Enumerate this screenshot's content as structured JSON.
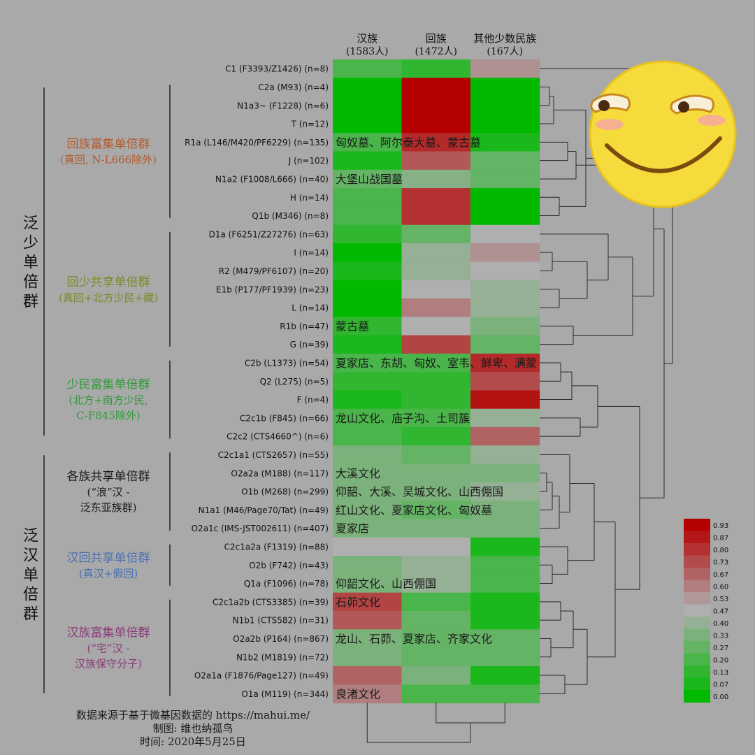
{
  "chart_data": {
    "type": "heatmap",
    "columns": [
      {
        "name": "汉族",
        "count": "(1583人)"
      },
      {
        "name": "回族",
        "count": "(1472人)"
      },
      {
        "name": "其他少数民族",
        "count": "(167人)"
      }
    ],
    "rows": [
      {
        "label": "C1 (F3393/Z1426) (n=8)",
        "values": [
          0.2,
          0.13,
          0.55
        ],
        "note": ""
      },
      {
        "label": "C2a (M93) (n=4)",
        "values": [
          0.0,
          0.95,
          0.0
        ],
        "note": ""
      },
      {
        "label": "N1a3~ (F1228) (n=6)",
        "values": [
          0.0,
          0.95,
          0.0
        ],
        "note": ""
      },
      {
        "label": "T (n=12)",
        "values": [
          0.0,
          0.95,
          0.0
        ],
        "note": ""
      },
      {
        "label": "R1a (L146/M420/PF6229) (n=135)",
        "values": [
          0.2,
          0.82,
          0.07
        ],
        "note": "匈奴墓、阿尔泰大墓、蒙古墓"
      },
      {
        "label": "J (n=102)",
        "values": [
          0.07,
          0.7,
          0.27
        ],
        "note": ""
      },
      {
        "label": "N1a2 (F1008/L666) (n=40)",
        "values": [
          0.27,
          0.36,
          0.27
        ],
        "note": "大堡山战国墓"
      },
      {
        "label": "H (n=14)",
        "values": [
          0.2,
          0.8,
          0.0
        ],
        "note": ""
      },
      {
        "label": "Q1b (M346) (n=8)",
        "values": [
          0.2,
          0.8,
          0.0
        ],
        "note": ""
      },
      {
        "label": "D1a (F6251/Z27276) (n=63)",
        "values": [
          0.13,
          0.27,
          0.47
        ],
        "note": ""
      },
      {
        "label": "I (n=14)",
        "values": [
          0.0,
          0.4,
          0.55
        ],
        "note": ""
      },
      {
        "label": "R2 (M479/PF6107) (n=20)",
        "values": [
          0.07,
          0.4,
          0.47
        ],
        "note": ""
      },
      {
        "label": "E1b (P177/PF1939) (n=23)",
        "values": [
          0.0,
          0.47,
          0.4
        ],
        "note": ""
      },
      {
        "label": "L (n=14)",
        "values": [
          0.0,
          0.6,
          0.4
        ],
        "note": ""
      },
      {
        "label": "R1b (n=47)",
        "values": [
          0.13,
          0.47,
          0.33
        ],
        "note": "蒙古墓"
      },
      {
        "label": "G (n=39)",
        "values": [
          0.07,
          0.75,
          0.27
        ],
        "note": ""
      },
      {
        "label": "C2b (L1373) (n=54)",
        "values": [
          0.2,
          0.2,
          0.82
        ],
        "note": "夏家店、东胡、匈奴、室韦、鲜卑、满蒙"
      },
      {
        "label": "Q2 (L275) (n=5)",
        "values": [
          0.13,
          0.13,
          0.73
        ],
        "note": ""
      },
      {
        "label": "F (n=4)",
        "values": [
          0.07,
          0.13,
          0.88
        ],
        "note": ""
      },
      {
        "label": "C2c1b (F845) (n=66)",
        "values": [
          0.2,
          0.2,
          0.4
        ],
        "note": "龙山文化、庙子沟、土司簇"
      },
      {
        "label": "C2c2 (CTS4660^) (n=6)",
        "values": [
          0.2,
          0.13,
          0.67
        ],
        "note": ""
      },
      {
        "label": "C2c1a1 (CTS2657) (n=55)",
        "values": [
          0.33,
          0.27,
          0.4
        ],
        "note": ""
      },
      {
        "label": "O2a2a (M188) (n=117)",
        "values": [
          0.33,
          0.33,
          0.33
        ],
        "note": "大溪文化"
      },
      {
        "label": "O1b (M268) (n=299)",
        "values": [
          0.33,
          0.33,
          0.4
        ],
        "note": "仰韶、大溪、吴城文化、山西倗国"
      },
      {
        "label": "N1a1 (M46/Page70/Tat) (n=49)",
        "values": [
          0.33,
          0.27,
          0.33
        ],
        "note": "红山文化、夏家店文化、匈奴墓"
      },
      {
        "label": "O2a1c (IMS-JST002611) (n=407)",
        "values": [
          0.33,
          0.33,
          0.33
        ],
        "note": "夏家店"
      },
      {
        "label": "C2c1a2a (F1319) (n=88)",
        "values": [
          0.47,
          0.47,
          0.07
        ],
        "note": ""
      },
      {
        "label": "O2b (F742) (n=43)",
        "values": [
          0.33,
          0.4,
          0.2
        ],
        "note": ""
      },
      {
        "label": "Q1a (F1096) (n=78)",
        "values": [
          0.33,
          0.4,
          0.2
        ],
        "note": "仰韶文化、山西倗国"
      },
      {
        "label": "C2c1a2b (CTS3385) (n=39)",
        "values": [
          0.75,
          0.2,
          0.07
        ],
        "note": "石茆文化"
      },
      {
        "label": "N1b1 (CTS582) (n=31)",
        "values": [
          0.7,
          0.27,
          0.07
        ],
        "note": ""
      },
      {
        "label": "O2a2b (P164) (n=867)",
        "values": [
          0.33,
          0.27,
          0.27
        ],
        "note": "龙山、石茆、夏家店、齐家文化"
      },
      {
        "label": "N1b2 (M1819) (n=72)",
        "values": [
          0.33,
          0.27,
          0.27
        ],
        "note": ""
      },
      {
        "label": "O2a1a (F1876/Page127) (n=49)",
        "values": [
          0.67,
          0.33,
          0.07
        ],
        "note": ""
      },
      {
        "label": "O1a (M119) (n=344)",
        "values": [
          0.6,
          0.2,
          0.2
        ],
        "note": "良渚文化"
      }
    ],
    "row_groups": [
      {
        "start": 1,
        "end": 8,
        "lines": [
          "回族富集单倍群",
          "(真回, N-L666除外)"
        ],
        "color": "#b25a2c"
      },
      {
        "start": 9,
        "end": 15,
        "lines": [
          "回少共享单倍群",
          "(真回+北方少民+藏)"
        ],
        "color": "#7a8a2a"
      },
      {
        "start": 16,
        "end": 20,
        "lines": [
          "少民富集单倍群",
          "(北方+南方少民,",
          "C-F845除外)"
        ],
        "color": "#2f9a3a"
      },
      {
        "start": 21,
        "end": 25,
        "lines": [
          "各族共享单倍群",
          "(“浪”汉 -",
          "泛东亚族群)"
        ],
        "color": "#1a1a1a"
      },
      {
        "start": 26,
        "end": 28,
        "lines": [
          "汉回共享单倍群",
          "(真汉+假回)"
        ],
        "color": "#4a6fb0"
      },
      {
        "start": 29,
        "end": 34,
        "lines": [
          "汉族富集单倍群",
          "(“宅”汉 -",
          "汉族保守分子)"
        ],
        "color": "#8a3a7a"
      }
    ],
    "super_groups": [
      {
        "start": 1,
        "end": 20,
        "label": "泛少单倍群"
      },
      {
        "start": 21,
        "end": 34,
        "label": "泛汉单倍群"
      }
    ],
    "legend": {
      "ticks": [
        "0.93",
        "0.87",
        "0.80",
        "0.73",
        "0.67",
        "0.60",
        "0.53",
        "0.47",
        "0.40",
        "0.33",
        "0.27",
        "0.20",
        "0.13",
        "0.07",
        "0.00"
      ],
      "range": [
        0,
        0.93
      ],
      "placement": "bottom-right"
    }
  },
  "footer": {
    "line1": "数据来源于基于微基因数据的 https://mahui.me/",
    "line2": "制图: 维也纳孤鸟",
    "line3": "时间: 2020年5月25日"
  },
  "emoji": {
    "icon": "grinning-face-emoji",
    "face_color": "#f5dc3c"
  }
}
